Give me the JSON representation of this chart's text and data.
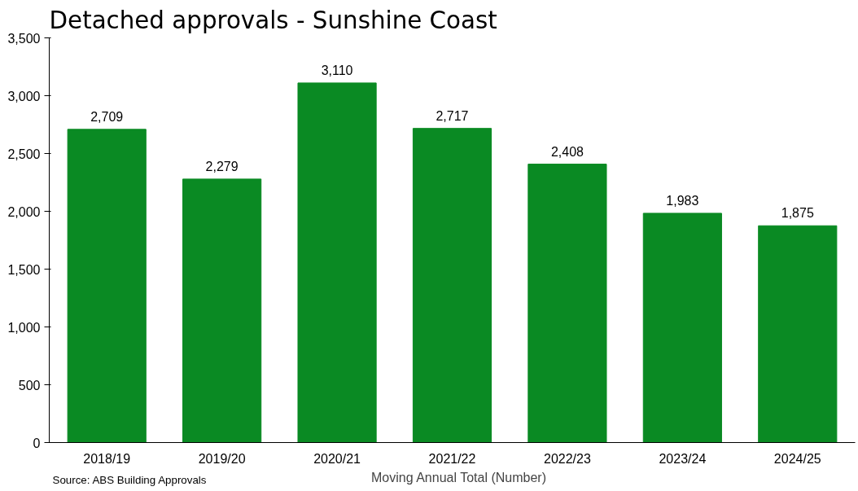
{
  "chart_data": {
    "type": "bar",
    "title": "Detached approvals - Sunshine Coast",
    "categories": [
      "2018/19",
      "2019/20",
      "2020/21",
      "2021/22",
      "2022/23",
      "2023/24",
      "2024/25"
    ],
    "series": [
      {
        "name": "Moving Annual Total (Number)",
        "color": "#0a8a23",
        "values": [
          2709,
          2279,
          3110,
          2717,
          2408,
          1983,
          1875
        ],
        "value_labels": [
          "2,709",
          "2,279",
          "3,110",
          "2,717",
          "2,408",
          "1,983",
          "1,875"
        ]
      }
    ],
    "ylim": [
      0,
      3500
    ],
    "yticks": [
      {
        "value": 0,
        "label": "0"
      },
      {
        "value": 500,
        "label": "500"
      },
      {
        "value": 1000,
        "label": "1,000"
      },
      {
        "value": 1500,
        "label": "1,500"
      },
      {
        "value": 2000,
        "label": "2,000"
      },
      {
        "value": 2500,
        "label": "2,500"
      },
      {
        "value": 3000,
        "label": "3,000"
      },
      {
        "value": 3500,
        "label": "3,500"
      }
    ],
    "grid": false,
    "legend": "bottom",
    "annotations": [
      "Source: ABS Building Approvals"
    ]
  }
}
